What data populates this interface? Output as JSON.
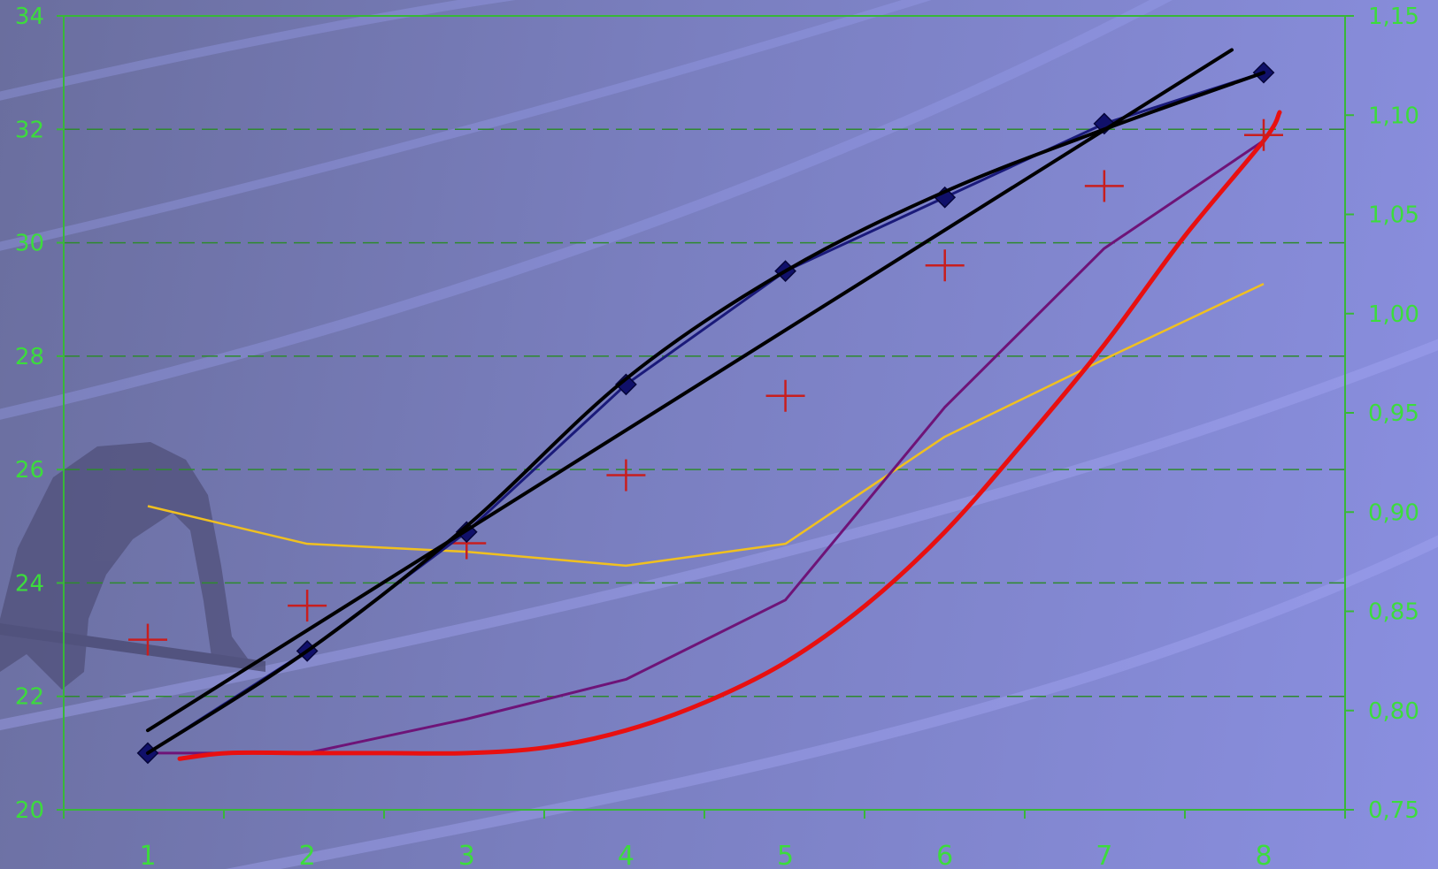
{
  "chart_data": {
    "type": "line",
    "categories": [
      1,
      2,
      3,
      4,
      5,
      6,
      7,
      8
    ],
    "x_ticks": [
      "1",
      "2",
      "3",
      "4",
      "5",
      "6",
      "7",
      "8"
    ],
    "y_left": {
      "min": 20,
      "max": 34,
      "ticks": [
        "20",
        "22",
        "24",
        "26",
        "28",
        "30",
        "32",
        "34"
      ]
    },
    "y_right": {
      "min": 0.75,
      "max": 1.15,
      "ticks": [
        "0,75",
        "0,80",
        "0,85",
        "0,90",
        "0,95",
        "1,00",
        "1,05",
        "1,10",
        "1,15"
      ]
    },
    "grid": "dashed horizontal",
    "series": [
      {
        "kind": "line-markers",
        "axis": "left",
        "color": "#1a1a7a",
        "values": [
          21.0,
          22.8,
          24.9,
          27.5,
          29.5,
          30.8,
          32.1,
          33.0
        ]
      },
      {
        "kind": "smooth-curve",
        "axis": "left",
        "color": "#000000",
        "values": [
          21.0,
          22.8,
          25.0,
          27.6,
          29.5,
          30.9,
          32.0,
          33.0
        ]
      },
      {
        "kind": "linear-trend",
        "axis": "left",
        "color": "#000000",
        "x": [
          1,
          7.8
        ],
        "values": [
          21.4,
          33.4
        ]
      },
      {
        "kind": "cross-markers",
        "axis": "left",
        "color": "#c81e1e",
        "values": [
          23.0,
          23.6,
          24.7,
          25.9,
          27.3,
          29.6,
          31.0,
          31.9
        ]
      },
      {
        "kind": "line",
        "axis": "right",
        "color": "#f0c020",
        "values": [
          0.903,
          0.884,
          0.88,
          0.873,
          0.884,
          0.938,
          0.977,
          1.015
        ]
      },
      {
        "kind": "line",
        "axis": "left",
        "color": "#6e1478",
        "values": [
          21.0,
          21.0,
          21.6,
          22.3,
          23.7,
          27.1,
          29.9,
          31.8
        ]
      },
      {
        "kind": "smooth-curve",
        "axis": "left",
        "color": "#e81010",
        "x": [
          1.2,
          1.5,
          2,
          2.5,
          3,
          3.5,
          4,
          4.5,
          5,
          5.5,
          6,
          6.5,
          7,
          7.5,
          8,
          8.1
        ],
        "values": [
          20.9,
          21.0,
          21.0,
          21.0,
          21.0,
          21.1,
          21.4,
          21.9,
          22.6,
          23.6,
          24.9,
          26.5,
          28.2,
          30.1,
          31.8,
          32.3
        ]
      }
    ]
  }
}
